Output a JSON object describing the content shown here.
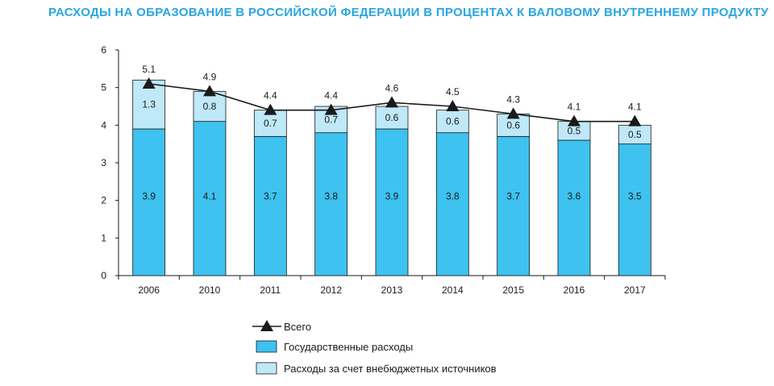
{
  "title": "РАСХОДЫ НА ОБРАЗОВАНИЕ В РОССИЙСКОЙ ФЕДЕРАЦИИ В ПРОЦЕНТАХ К ВАЛОВОМУ ВНУТРЕННЕМУ ПРОДУКТУ",
  "colors": {
    "title": "#2aa6df",
    "government": "#3ec2ef",
    "extra_budget": "#bfe8f8",
    "line": "#1a1a1a"
  },
  "chart_data": {
    "type": "bar",
    "stacked": true,
    "categories": [
      "2006",
      "2010",
      "2011",
      "2012",
      "2013",
      "2014",
      "2015",
      "2016",
      "2017"
    ],
    "ylim": [
      0,
      6
    ],
    "yticks": [
      "0",
      "1",
      "2",
      "3",
      "4",
      "5",
      "6"
    ],
    "grid": false,
    "legend_position": "bottom-center",
    "series": [
      {
        "name": "Государственные расходы",
        "kind": "bar",
        "values": [
          3.9,
          4.1,
          3.7,
          3.8,
          3.9,
          3.8,
          3.7,
          3.6,
          3.5
        ],
        "labels": [
          "3.9",
          "4.1",
          "3.7",
          "3.8",
          "3.9",
          "3.8",
          "3.7",
          "3.6",
          "3.5"
        ]
      },
      {
        "name": "Расходы за счет внебюджетных источников",
        "kind": "bar",
        "values": [
          1.3,
          0.8,
          0.7,
          0.7,
          0.6,
          0.6,
          0.6,
          0.5,
          0.5
        ],
        "labels": [
          "1.3",
          "0.8",
          "0.7",
          "0.7",
          "0.6",
          "0.6",
          "0.6",
          "0.5",
          "0.5"
        ]
      },
      {
        "name": "Всего",
        "kind": "line",
        "marker": "triangle",
        "values": [
          5.1,
          4.9,
          4.4,
          4.4,
          4.6,
          4.5,
          4.3,
          4.1,
          4.1
        ],
        "labels": [
          "5.1",
          "4.9",
          "4.4",
          "4.4",
          "4.6",
          "4.5",
          "4.3",
          "4.1",
          "4.1"
        ]
      }
    ]
  }
}
